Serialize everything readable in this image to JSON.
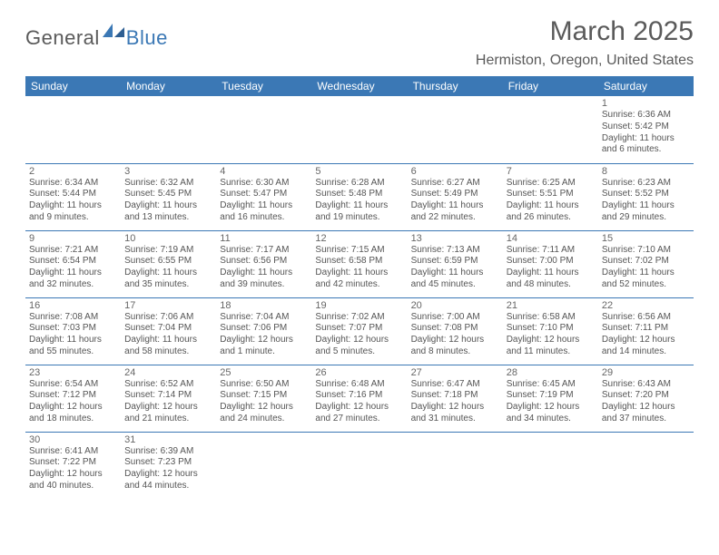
{
  "logo": {
    "part1": "General",
    "part2": "Blue"
  },
  "title": "March 2025",
  "location": "Hermiston, Oregon, United States",
  "colors": {
    "headerBg": "#3b78b5",
    "headerText": "#ffffff",
    "border": "#3b78b5"
  },
  "dayHeaders": [
    "Sunday",
    "Monday",
    "Tuesday",
    "Wednesday",
    "Thursday",
    "Friday",
    "Saturday"
  ],
  "weeks": [
    [
      null,
      null,
      null,
      null,
      null,
      null,
      {
        "n": "1",
        "sunrise": "6:36 AM",
        "sunset": "5:42 PM",
        "daylight": "11 hours and 6 minutes."
      }
    ],
    [
      {
        "n": "2",
        "sunrise": "6:34 AM",
        "sunset": "5:44 PM",
        "daylight": "11 hours and 9 minutes."
      },
      {
        "n": "3",
        "sunrise": "6:32 AM",
        "sunset": "5:45 PM",
        "daylight": "11 hours and 13 minutes."
      },
      {
        "n": "4",
        "sunrise": "6:30 AM",
        "sunset": "5:47 PM",
        "daylight": "11 hours and 16 minutes."
      },
      {
        "n": "5",
        "sunrise": "6:28 AM",
        "sunset": "5:48 PM",
        "daylight": "11 hours and 19 minutes."
      },
      {
        "n": "6",
        "sunrise": "6:27 AM",
        "sunset": "5:49 PM",
        "daylight": "11 hours and 22 minutes."
      },
      {
        "n": "7",
        "sunrise": "6:25 AM",
        "sunset": "5:51 PM",
        "daylight": "11 hours and 26 minutes."
      },
      {
        "n": "8",
        "sunrise": "6:23 AM",
        "sunset": "5:52 PM",
        "daylight": "11 hours and 29 minutes."
      }
    ],
    [
      {
        "n": "9",
        "sunrise": "7:21 AM",
        "sunset": "6:54 PM",
        "daylight": "11 hours and 32 minutes."
      },
      {
        "n": "10",
        "sunrise": "7:19 AM",
        "sunset": "6:55 PM",
        "daylight": "11 hours and 35 minutes."
      },
      {
        "n": "11",
        "sunrise": "7:17 AM",
        "sunset": "6:56 PM",
        "daylight": "11 hours and 39 minutes."
      },
      {
        "n": "12",
        "sunrise": "7:15 AM",
        "sunset": "6:58 PM",
        "daylight": "11 hours and 42 minutes."
      },
      {
        "n": "13",
        "sunrise": "7:13 AM",
        "sunset": "6:59 PM",
        "daylight": "11 hours and 45 minutes."
      },
      {
        "n": "14",
        "sunrise": "7:11 AM",
        "sunset": "7:00 PM",
        "daylight": "11 hours and 48 minutes."
      },
      {
        "n": "15",
        "sunrise": "7:10 AM",
        "sunset": "7:02 PM",
        "daylight": "11 hours and 52 minutes."
      }
    ],
    [
      {
        "n": "16",
        "sunrise": "7:08 AM",
        "sunset": "7:03 PM",
        "daylight": "11 hours and 55 minutes."
      },
      {
        "n": "17",
        "sunrise": "7:06 AM",
        "sunset": "7:04 PM",
        "daylight": "11 hours and 58 minutes."
      },
      {
        "n": "18",
        "sunrise": "7:04 AM",
        "sunset": "7:06 PM",
        "daylight": "12 hours and 1 minute."
      },
      {
        "n": "19",
        "sunrise": "7:02 AM",
        "sunset": "7:07 PM",
        "daylight": "12 hours and 5 minutes."
      },
      {
        "n": "20",
        "sunrise": "7:00 AM",
        "sunset": "7:08 PM",
        "daylight": "12 hours and 8 minutes."
      },
      {
        "n": "21",
        "sunrise": "6:58 AM",
        "sunset": "7:10 PM",
        "daylight": "12 hours and 11 minutes."
      },
      {
        "n": "22",
        "sunrise": "6:56 AM",
        "sunset": "7:11 PM",
        "daylight": "12 hours and 14 minutes."
      }
    ],
    [
      {
        "n": "23",
        "sunrise": "6:54 AM",
        "sunset": "7:12 PM",
        "daylight": "12 hours and 18 minutes."
      },
      {
        "n": "24",
        "sunrise": "6:52 AM",
        "sunset": "7:14 PM",
        "daylight": "12 hours and 21 minutes."
      },
      {
        "n": "25",
        "sunrise": "6:50 AM",
        "sunset": "7:15 PM",
        "daylight": "12 hours and 24 minutes."
      },
      {
        "n": "26",
        "sunrise": "6:48 AM",
        "sunset": "7:16 PM",
        "daylight": "12 hours and 27 minutes."
      },
      {
        "n": "27",
        "sunrise": "6:47 AM",
        "sunset": "7:18 PM",
        "daylight": "12 hours and 31 minutes."
      },
      {
        "n": "28",
        "sunrise": "6:45 AM",
        "sunset": "7:19 PM",
        "daylight": "12 hours and 34 minutes."
      },
      {
        "n": "29",
        "sunrise": "6:43 AM",
        "sunset": "7:20 PM",
        "daylight": "12 hours and 37 minutes."
      }
    ],
    [
      {
        "n": "30",
        "sunrise": "6:41 AM",
        "sunset": "7:22 PM",
        "daylight": "12 hours and 40 minutes."
      },
      {
        "n": "31",
        "sunrise": "6:39 AM",
        "sunset": "7:23 PM",
        "daylight": "12 hours and 44 minutes."
      },
      null,
      null,
      null,
      null,
      null
    ]
  ],
  "labels": {
    "sunrise": "Sunrise: ",
    "sunset": "Sunset: ",
    "daylight": "Daylight: "
  }
}
